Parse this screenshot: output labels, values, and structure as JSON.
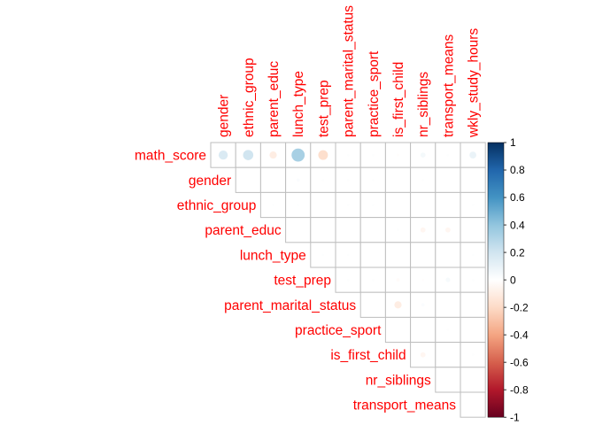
{
  "chart_data": {
    "type": "heatmap",
    "subtype": "correlation-matrix-upper-circle",
    "row_labels": [
      "math_score",
      "gender",
      "ethnic_group",
      "parent_educ",
      "lunch_type",
      "test_prep",
      "parent_marital_status",
      "practice_sport",
      "is_first_child",
      "nr_siblings",
      "transport_means"
    ],
    "column_labels": [
      "gender",
      "ethnic_group",
      "parent_educ",
      "lunch_type",
      "test_prep",
      "parent_marital_status",
      "practice_sport",
      "is_first_child",
      "nr_siblings",
      "transport_means",
      "wkly_study_hours"
    ],
    "values": [
      [
        0.16,
        0.2,
        -0.1,
        0.33,
        -0.18,
        0.01,
        0.01,
        -0.01,
        0.05,
        0.01,
        0.09
      ],
      [
        null,
        0.0,
        0.0,
        0.02,
        0.01,
        0.01,
        0.01,
        0.0,
        0.01,
        0.0,
        0.0
      ],
      [
        null,
        null,
        0.01,
        0.01,
        0.0,
        0.01,
        0.01,
        0.0,
        0.0,
        0.0,
        0.01
      ],
      [
        null,
        null,
        null,
        0.0,
        0.0,
        0.0,
        0.0,
        0.01,
        -0.05,
        -0.05,
        0.0
      ],
      [
        null,
        null,
        null,
        null,
        0.01,
        0.01,
        0.0,
        0.0,
        0.0,
        0.0,
        0.01
      ],
      [
        null,
        null,
        null,
        null,
        null,
        0.01,
        0.01,
        -0.02,
        -0.01,
        0.04,
        0.01
      ],
      [
        null,
        null,
        null,
        null,
        null,
        null,
        0.0,
        -0.1,
        0.02,
        0.0,
        0.0
      ],
      [
        null,
        null,
        null,
        null,
        null,
        null,
        null,
        0.0,
        0.0,
        0.01,
        0.0
      ],
      [
        null,
        null,
        null,
        null,
        null,
        null,
        null,
        null,
        -0.05,
        0.0,
        0.01
      ],
      [
        null,
        null,
        null,
        null,
        null,
        null,
        null,
        null,
        null,
        0.0,
        0.0
      ],
      [
        null,
        null,
        null,
        null,
        null,
        null,
        null,
        null,
        null,
        null,
        0.0
      ]
    ],
    "colorbar": {
      "range": [
        -1,
        1
      ],
      "ticks": [
        "1",
        "0.8",
        "0.6",
        "0.4",
        "0.2",
        "0",
        "-0.2",
        "-0.4",
        "-0.6",
        "-0.8",
        "-1"
      ],
      "colors": [
        "#67001f",
        "#b2182b",
        "#d6604d",
        "#f4a582",
        "#fddbc7",
        "#ffffff",
        "#d1e5f0",
        "#92c5de",
        "#4393c3",
        "#2166ac",
        "#053061"
      ]
    },
    "label_color": "#ff0000",
    "grid_color": "#bebebe"
  }
}
